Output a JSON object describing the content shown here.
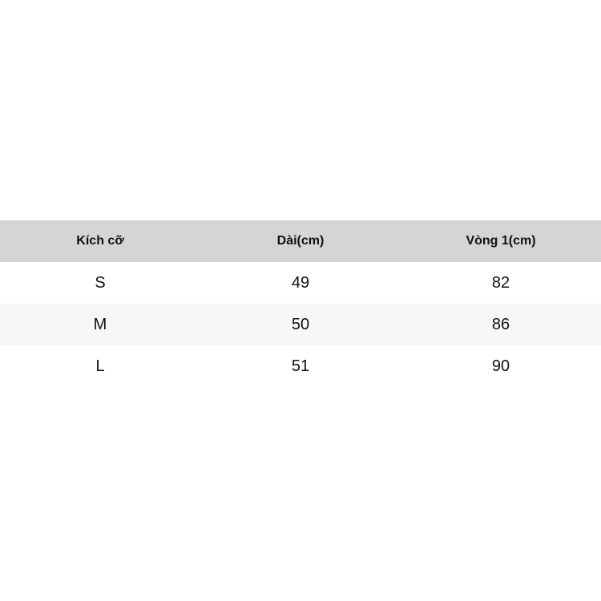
{
  "colors": {
    "page_bg": "#ffffff",
    "header_bg": "#d5d5d5",
    "row_bg": "#ffffff",
    "row_alt_bg": "#f7f7f7",
    "text": "#111111"
  },
  "table": {
    "columns": [
      "Kích cỡ",
      "Dài(cm)",
      "Vòng 1(cm)"
    ],
    "rows": [
      {
        "size": "S",
        "length_cm": "49",
        "bust_cm": "82"
      },
      {
        "size": "M",
        "length_cm": "50",
        "bust_cm": "86"
      },
      {
        "size": "L",
        "length_cm": "51",
        "bust_cm": "90"
      }
    ]
  },
  "chart_data": {
    "type": "table",
    "title": "",
    "columns": [
      "Kích cỡ",
      "Dài(cm)",
      "Vòng 1(cm)"
    ],
    "rows": [
      [
        "S",
        49,
        82
      ],
      [
        "M",
        50,
        86
      ],
      [
        "L",
        51,
        90
      ]
    ]
  }
}
